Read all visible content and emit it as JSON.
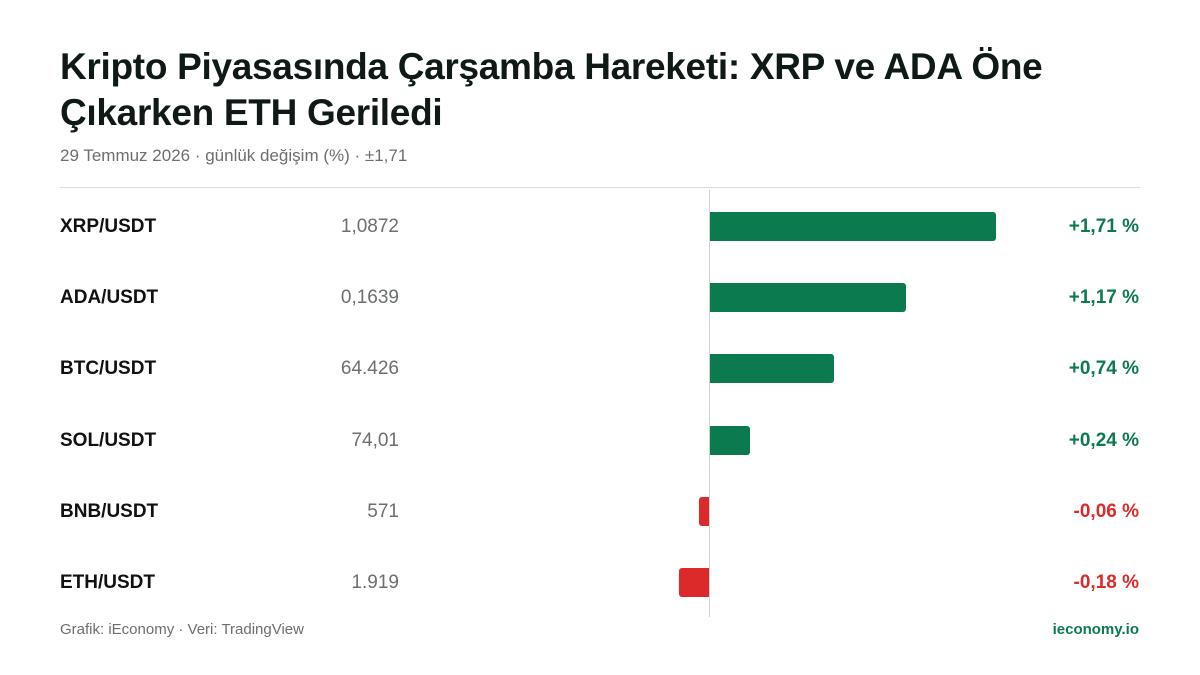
{
  "header": {
    "title": "Kripto Piyasasında Çarşamba Hareketi: XRP ve ADA Öne Çıkarken ETH Geriledi",
    "subtitle": "29 Temmuz 2026 · günlük değişim (%) · ±1,71"
  },
  "chart_data": {
    "type": "bar",
    "orientation": "horizontal",
    "title": "Kripto Piyasasında Çarşamba Hareketi: XRP ve ADA Öne Çıkarken ETH Geriledi",
    "subtitle": "29 Temmuz 2026 · günlük değişim (%) · ±1,71",
    "xlim": [
      -1.71,
      1.71
    ],
    "categories": [
      "XRP/USDT",
      "ADA/USDT",
      "BTC/USDT",
      "SOL/USDT",
      "BNB/USDT",
      "ETH/USDT"
    ],
    "prices": [
      "1,0872",
      "0,1639",
      "64.426",
      "74,01",
      "571",
      "1.919"
    ],
    "values": [
      1.71,
      1.17,
      0.74,
      0.24,
      -0.06,
      -0.18
    ],
    "value_labels": [
      "+1,71 %",
      "+1,17 %",
      "+0,74 %",
      "+0,24 %",
      "-0,06 %",
      "-0,18 %"
    ],
    "colors": {
      "positive": "#0c7a4f",
      "negative": "#dc2a2a"
    },
    "grid": false
  },
  "footer": {
    "source": "Grafik: iEconomy · Veri: TradingView",
    "brand": "ieconomy.io"
  }
}
